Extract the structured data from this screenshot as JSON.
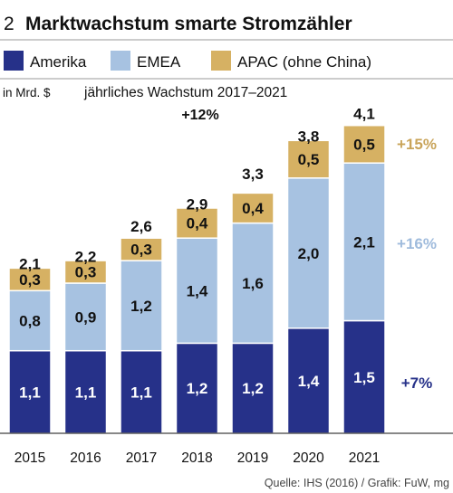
{
  "header": {
    "number": "2",
    "title": "Marktwachstum smarte Stromzähler"
  },
  "colors": {
    "amerika": "#263189",
    "emea": "#a7c2e1",
    "apac": "#d6b163",
    "emea_text": "#9fbbdc",
    "apac_text": "#c9a45a",
    "amerika_text": "#263189"
  },
  "chart_data": {
    "type": "bar",
    "stacked": true,
    "categories": [
      "2015",
      "2016",
      "2017",
      "2018",
      "2019",
      "2020",
      "2021"
    ],
    "series": [
      {
        "name": "Amerika",
        "values": [
          1.1,
          1.1,
          1.1,
          1.2,
          1.2,
          1.4,
          1.5
        ],
        "labels": [
          "1,1",
          "1,1",
          "1,1",
          "1,2",
          "1,2",
          "1,4",
          "1,5"
        ]
      },
      {
        "name": "EMEA",
        "values": [
          0.8,
          0.9,
          1.2,
          1.4,
          1.6,
          2.0,
          2.1
        ],
        "labels": [
          "0,8",
          "0,9",
          "1,2",
          "1,4",
          "1,6",
          "2,0",
          "2,1"
        ]
      },
      {
        "name": "APAC (ohne China)",
        "values": [
          0.3,
          0.3,
          0.3,
          0.4,
          0.4,
          0.5,
          0.5
        ],
        "labels": [
          "0,3",
          "0,3",
          "0,3",
          "0,4",
          "0,4",
          "0,5",
          "0,5"
        ]
      }
    ],
    "totals": [
      2.1,
      2.2,
      2.6,
      2.9,
      3.3,
      3.8,
      4.1
    ],
    "total_labels": [
      "2,1",
      "2,2",
      "2,6",
      "2,9",
      "3,3",
      "3,8",
      "4,1"
    ],
    "ylabel": "in Mrd. $",
    "subtitle": "jährliches Wachstum 2017–2021",
    "overall_growth": "+12%",
    "growth_rates": {
      "Amerika": "+7%",
      "EMEA": "+16%",
      "APAC (ohne China)": "+15%"
    },
    "legend_position": "top",
    "grid": false
  },
  "source": "Quelle: IHS (2016) / Grafik: FuW, mg"
}
